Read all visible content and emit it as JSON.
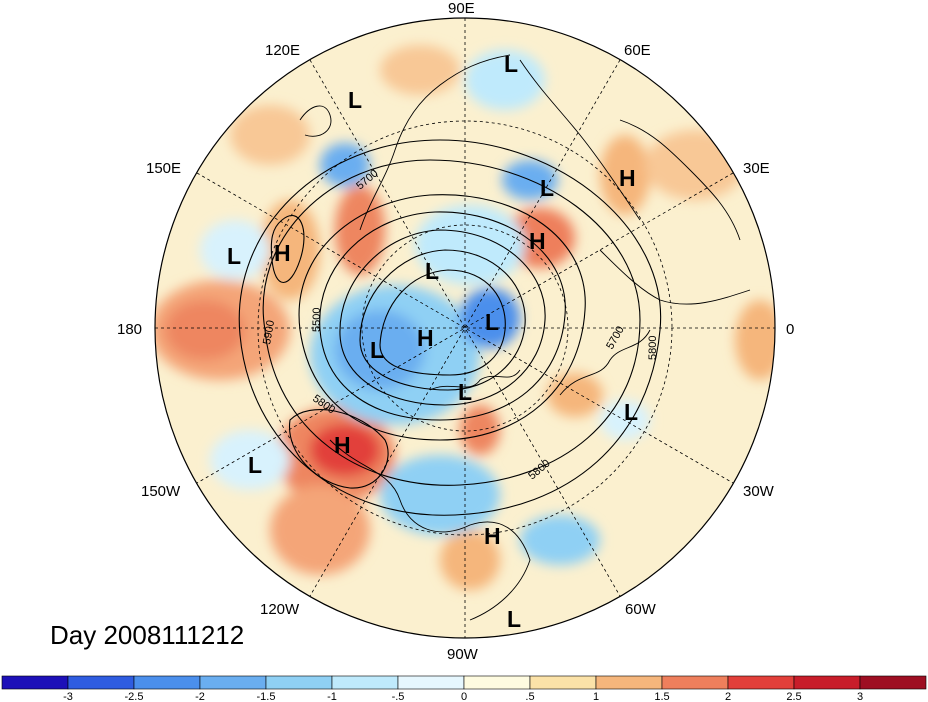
{
  "title": "Day 2008111212",
  "longitude_labels": {
    "top": "90E",
    "upper_left": "120E",
    "upper_right": "60E",
    "left_upper": "150E",
    "right_upper": "30E",
    "left": "180",
    "right": "0",
    "left_lower": "150W",
    "right_lower": "30W",
    "lower_left": "120W",
    "lower_right": "60W",
    "bottom": "90W"
  },
  "pressure_centers": [
    {
      "type": "L",
      "label": "L"
    },
    {
      "type": "L",
      "label": "L"
    },
    {
      "type": "H",
      "label": "H"
    },
    {
      "type": "L",
      "label": "L"
    },
    {
      "type": "H",
      "label": "H"
    },
    {
      "type": "H",
      "label": "H"
    },
    {
      "type": "L",
      "label": "L"
    },
    {
      "type": "L",
      "label": "L"
    },
    {
      "type": "H",
      "label": "H"
    },
    {
      "type": "L",
      "label": "L"
    },
    {
      "type": "L",
      "label": "L"
    },
    {
      "type": "L",
      "label": "L"
    },
    {
      "type": "H",
      "label": "H"
    },
    {
      "type": "L",
      "label": "L"
    },
    {
      "type": "H",
      "label": "H"
    },
    {
      "type": "L",
      "label": "L"
    },
    {
      "type": "L",
      "label": "L"
    }
  ],
  "contour_labels": [
    "5700",
    "5500",
    "5900",
    "5800",
    "5700",
    "5800",
    "5800"
  ],
  "colorbar": {
    "ticks": [
      "-3",
      "-2.5",
      "-2",
      "-1.5",
      "-1",
      "-.5",
      "0",
      ".5",
      "1",
      "1.5",
      "2",
      "2.5",
      "3"
    ],
    "colors": [
      "#1d10b8",
      "#2f5ce0",
      "#4b8fec",
      "#6aaef0",
      "#8fd0f4",
      "#bfeafc",
      "#e6f7fe",
      "#fefbe0",
      "#fbe2a8",
      "#f5b67c",
      "#ee7f5c",
      "#e23f3a",
      "#c81d2a",
      "#9e0e22"
    ]
  }
}
